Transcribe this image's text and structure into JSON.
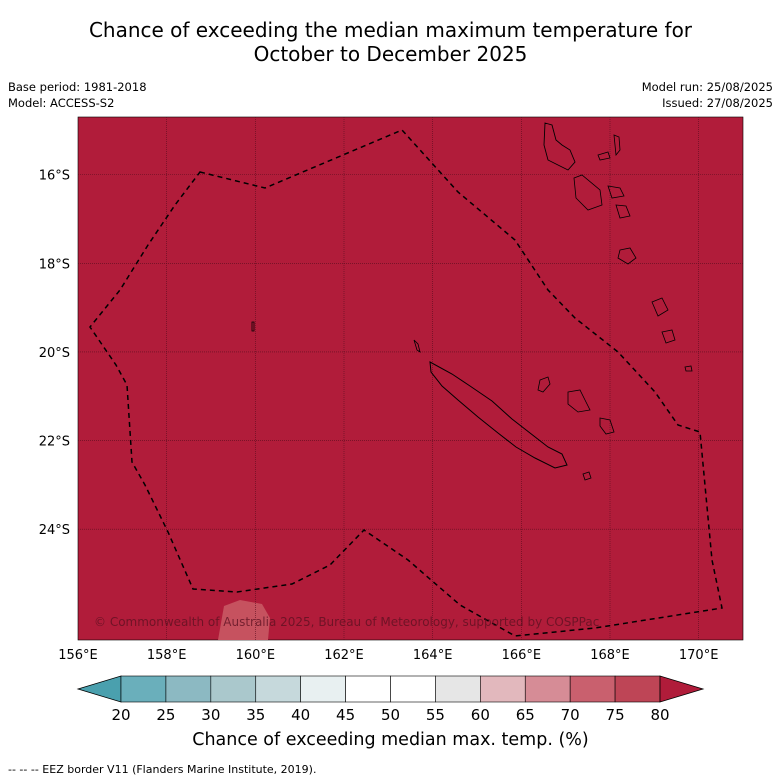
{
  "title_line1": "Chance of exceeding the median maximum temperature for",
  "title_line2": "October to December 2025",
  "base_period": "Base period: 1981-2018",
  "model": "Model: ACCESS-S2",
  "model_run": "Model run: 25/08/2025",
  "issued": "Issued: 27/08/2025",
  "copyright": "© Commonwealth of Australia 2025, Bureau of Meteorology, supported by COSPPac",
  "map": {
    "lon_ticks": [
      "156°E",
      "158°E",
      "160°E",
      "162°E",
      "164°E",
      "166°E",
      "168°E",
      "170°E"
    ],
    "lat_ticks": [
      "16°S",
      "18°S",
      "20°S",
      "22°S",
      "24°S"
    ],
    "lon_range": [
      156,
      171
    ],
    "lat_range": [
      -14.7,
      -26.5
    ],
    "dominant_category": "75-80+",
    "grid": true
  },
  "colorbar": {
    "tick_labels": [
      "20",
      "25",
      "30",
      "35",
      "40",
      "45",
      "50",
      "55",
      "60",
      "65",
      "70",
      "75",
      "80"
    ],
    "colors": [
      "#4aa0ae",
      "#6aafbb",
      "#8cb9c2",
      "#aac8cc",
      "#c6d9dc",
      "#e8f0f1",
      "#ffffff",
      "#ffffff",
      "#e6e6e6",
      "#e2b8bd",
      "#d68c96",
      "#c9606e",
      "#be4556",
      "#b01c3a"
    ],
    "title": "Chance of exceeding median max. temp. (%)"
  },
  "map_fill_color": "#b11c3a",
  "footnote": "-- -- -- EEZ border V11 (Flanders Marine Institute, 2019)."
}
